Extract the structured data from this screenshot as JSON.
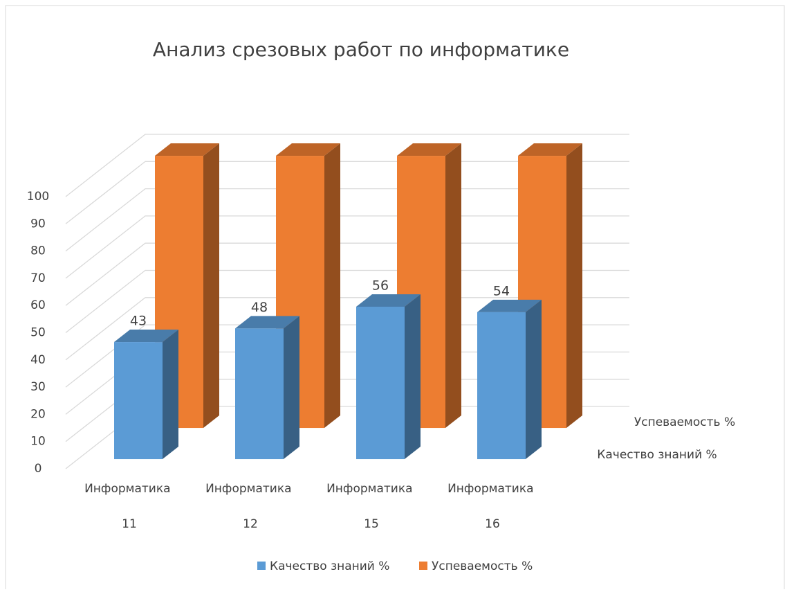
{
  "chart_data": {
    "type": "bar3d",
    "title": "Анализ срезовых работ по информатике",
    "categories": [
      "Информатика 11",
      "Информатика 12",
      "Информатика 15",
      "Информатика 16"
    ],
    "series": [
      {
        "name": "Качество знаний %",
        "color": "#5b9bd5",
        "values": [
          43,
          48,
          56,
          54
        ],
        "value_labels_shown": true
      },
      {
        "name": "Успеваемость %",
        "color": "#ed7d31",
        "values": [
          100,
          100,
          100,
          100
        ]
      }
    ],
    "ylim": [
      0,
      100
    ],
    "yticks": [
      0,
      10,
      20,
      30,
      40,
      50,
      60,
      70,
      80,
      90,
      100
    ],
    "grid": true,
    "legend": "bottom"
  }
}
